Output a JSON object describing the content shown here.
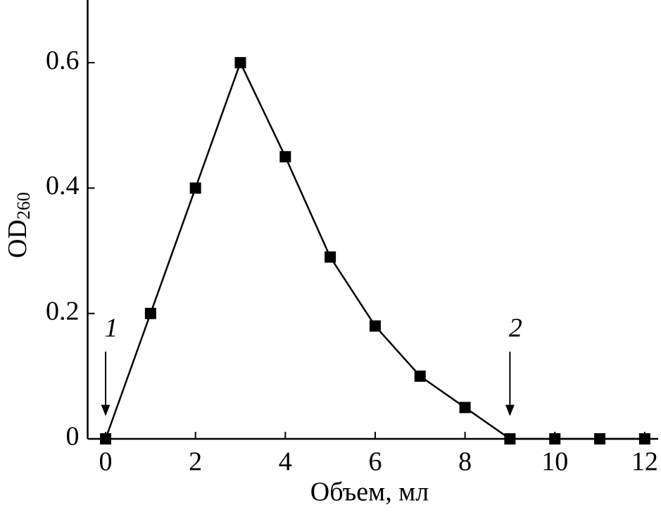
{
  "chart_data": {
    "type": "line",
    "xlabel": "Объем, мл",
    "ylabel": "OD",
    "ylabel_subscript": "260",
    "x": [
      0,
      1,
      2,
      3,
      4,
      5,
      6,
      7,
      8,
      9,
      10,
      11,
      12
    ],
    "series": [
      {
        "color": "#000000",
        "marker": "square",
        "values": [
          0,
          0.2,
          0.4,
          0.6,
          0.45,
          0.29,
          0.18,
          0.1,
          0.05,
          0,
          0,
          0,
          0
        ]
      }
    ],
    "xlim": [
      -0.4,
      12.3
    ],
    "ylim": [
      0,
      0.7
    ],
    "xticks": [
      0,
      2,
      4,
      6,
      8,
      10,
      12
    ],
    "yticks": [
      0,
      0.2,
      0.4,
      0.6
    ],
    "grid": false,
    "annotations": [
      {
        "text": "1",
        "x": 0
      },
      {
        "text": "2",
        "x": 9
      }
    ]
  }
}
